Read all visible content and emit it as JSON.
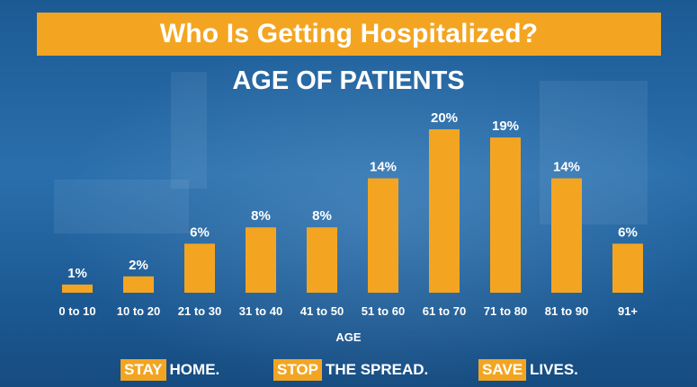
{
  "title": "Who Is Getting Hospitalized?",
  "chart_data": {
    "type": "bar",
    "title": "AGE OF PATIENTS",
    "xlabel": "AGE",
    "ylabel": "",
    "categories": [
      "0 to 10",
      "10 to 20",
      "21 to 30",
      "31 to 40",
      "41 to 50",
      "51 to 60",
      "61 to 70",
      "71 to 80",
      "81 to 90",
      "91+"
    ],
    "values": [
      1,
      2,
      6,
      8,
      8,
      14,
      20,
      19,
      14,
      6
    ],
    "value_labels": [
      "1%",
      "2%",
      "6%",
      "8%",
      "8%",
      "14%",
      "20%",
      "19%",
      "14%",
      "6%"
    ],
    "ylim": [
      0,
      20
    ],
    "grid": false,
    "bar_color": "#f3a522"
  },
  "footer": {
    "slogans": [
      {
        "highlight": "STAY",
        "rest": "HOME."
      },
      {
        "highlight": "STOP",
        "rest": "THE SPREAD."
      },
      {
        "highlight": "SAVE",
        "rest": "LIVES."
      }
    ]
  },
  "colors": {
    "accent": "#f3a522",
    "background": "#1f5f99",
    "text": "#ffffff"
  }
}
